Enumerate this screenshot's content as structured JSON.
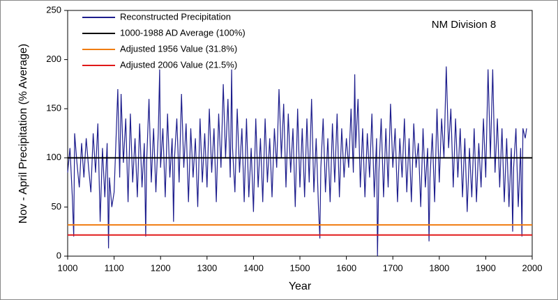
{
  "chart_data": {
    "type": "line",
    "annotation": "NM Division 8",
    "xlabel": "Year",
    "ylabel": "Nov - April Precipitation (% Average)",
    "xlim": [
      1000,
      2000
    ],
    "xticks": [
      1000,
      1100,
      1200,
      1300,
      1400,
      1500,
      1600,
      1700,
      1800,
      1900,
      2000
    ],
    "ylim": [
      0,
      250
    ],
    "yticks": [
      0,
      50,
      100,
      150,
      200,
      250
    ],
    "legend": "upper left",
    "series": [
      {
        "name": "Reconstructed Precipitation",
        "color": "#1c1c8c",
        "x": [
          1000,
          1005,
          1010,
          1013,
          1015,
          1020,
          1025,
          1030,
          1035,
          1040,
          1045,
          1050,
          1055,
          1060,
          1065,
          1070,
          1075,
          1080,
          1085,
          1088,
          1090,
          1095,
          1100,
          1105,
          1108,
          1112,
          1115,
          1120,
          1125,
          1130,
          1135,
          1140,
          1145,
          1150,
          1155,
          1160,
          1165,
          1168,
          1170,
          1175,
          1180,
          1185,
          1190,
          1195,
          1198,
          1200,
          1205,
          1210,
          1215,
          1220,
          1225,
          1228,
          1230,
          1235,
          1240,
          1245,
          1250,
          1255,
          1260,
          1265,
          1270,
          1275,
          1280,
          1285,
          1290,
          1295,
          1300,
          1305,
          1310,
          1315,
          1320,
          1325,
          1330,
          1335,
          1340,
          1345,
          1350,
          1353,
          1355,
          1360,
          1365,
          1370,
          1375,
          1380,
          1385,
          1390,
          1395,
          1400,
          1405,
          1410,
          1415,
          1420,
          1425,
          1430,
          1435,
          1440,
          1445,
          1450,
          1455,
          1460,
          1465,
          1470,
          1475,
          1480,
          1485,
          1490,
          1495,
          1500,
          1505,
          1510,
          1515,
          1520,
          1525,
          1530,
          1535,
          1540,
          1543,
          1545,
          1550,
          1555,
          1560,
          1565,
          1570,
          1575,
          1580,
          1585,
          1590,
          1595,
          1600,
          1605,
          1610,
          1615,
          1618,
          1620,
          1625,
          1630,
          1635,
          1640,
          1645,
          1650,
          1655,
          1660,
          1665,
          1667,
          1670,
          1675,
          1680,
          1685,
          1690,
          1695,
          1700,
          1705,
          1710,
          1715,
          1720,
          1725,
          1730,
          1735,
          1740,
          1745,
          1750,
          1755,
          1760,
          1765,
          1770,
          1775,
          1778,
          1780,
          1785,
          1790,
          1795,
          1800,
          1805,
          1810,
          1815,
          1820,
          1825,
          1830,
          1835,
          1840,
          1845,
          1850,
          1855,
          1860,
          1865,
          1870,
          1875,
          1880,
          1885,
          1890,
          1895,
          1900,
          1905,
          1910,
          1915,
          1920,
          1925,
          1930,
          1935,
          1940,
          1945,
          1950,
          1955,
          1958,
          1960,
          1965,
          1970,
          1975,
          1978,
          1980,
          1985,
          1988
        ],
        "values": [
          85,
          110,
          60,
          20,
          125,
          95,
          70,
          115,
          80,
          120,
          90,
          65,
          125,
          85,
          135,
          35,
          110,
          60,
          115,
          8,
          80,
          50,
          65,
          130,
          170,
          80,
          165,
          95,
          140,
          55,
          145,
          75,
          120,
          60,
          135,
          70,
          115,
          20,
          95,
          160,
          75,
          130,
          65,
          125,
          190,
          90,
          130,
          60,
          145,
          80,
          120,
          35,
          100,
          140,
          75,
          165,
          90,
          135,
          55,
          130,
          80,
          120,
          50,
          140,
          75,
          125,
          70,
          150,
          85,
          130,
          55,
          145,
          90,
          175,
          100,
          160,
          80,
          190,
          110,
          65,
          150,
          85,
          130,
          55,
          140,
          60,
          110,
          45,
          140,
          70,
          120,
          55,
          140,
          75,
          120,
          60,
          130,
          90,
          170,
          100,
          155,
          70,
          145,
          85,
          130,
          50,
          150,
          70,
          130,
          60,
          140,
          75,
          160,
          65,
          120,
          50,
          18,
          90,
          140,
          65,
          120,
          55,
          135,
          75,
          145,
          60,
          130,
          80,
          120,
          90,
          150,
          85,
          185,
          110,
          160,
          70,
          130,
          60,
          125,
          80,
          145,
          60,
          120,
          0,
          85,
          140,
          60,
          130,
          70,
          155,
          90,
          130,
          55,
          120,
          80,
          140,
          65,
          120,
          55,
          135,
          90,
          115,
          50,
          130,
          70,
          110,
          15,
          80,
          125,
          55,
          150,
          75,
          140,
          100,
          193,
          110,
          150,
          70,
          140,
          80,
          130,
          60,
          120,
          45,
          110,
          60,
          130,
          55,
          115,
          70,
          140,
          80,
          190,
          100,
          190,
          85,
          140,
          70,
          130,
          55,
          120,
          50,
          110,
          25,
          90,
          130,
          50,
          110,
          20,
          130,
          120,
          130
        ]
      },
      {
        "name": "1000-1988 AD Average (100%)",
        "color": "#000000",
        "x": [
          1000,
          2000
        ],
        "values": [
          100,
          100
        ]
      },
      {
        "name": "Adjusted 1956 Value  (31.8%)",
        "color": "#f07c10",
        "x": [
          1000,
          2000
        ],
        "values": [
          31.8,
          31.8
        ]
      },
      {
        "name": "Adjusted 2006 Value  (21.5%)",
        "color": "#e01818",
        "x": [
          1000,
          2000
        ],
        "values": [
          21.5,
          21.5
        ]
      }
    ]
  }
}
